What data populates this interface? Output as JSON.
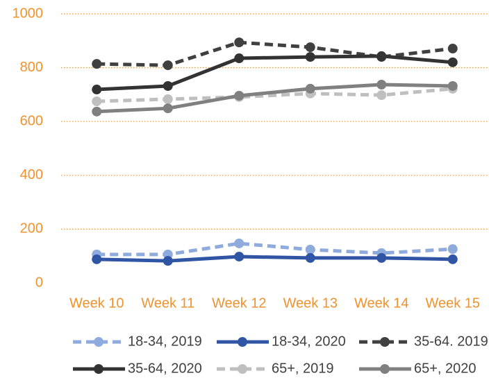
{
  "chart_data": {
    "type": "line",
    "categories": [
      "Week 10",
      "Week 11",
      "Week 12",
      "Week 13",
      "Week 14",
      "Week 15"
    ],
    "series": [
      {
        "name": "18-34, 2019",
        "color": "#8faadc",
        "dashed": true,
        "values": [
          106,
          106,
          147,
          124,
          111,
          126
        ]
      },
      {
        "name": "18-34, 2020",
        "color": "#2f55a4",
        "dashed": false,
        "values": [
          88,
          82,
          98,
          93,
          93,
          88
        ]
      },
      {
        "name": "35-64. 2019",
        "color": "#404040",
        "dashed": true,
        "values": [
          814,
          809,
          894,
          876,
          840,
          871
        ]
      },
      {
        "name": "35-64, 2020",
        "color": "#333333",
        "dashed": false,
        "values": [
          719,
          732,
          835,
          840,
          843,
          820
        ]
      },
      {
        "name": "65+, 2019",
        "color": "#bfbfbf",
        "dashed": true,
        "values": [
          675,
          683,
          691,
          704,
          698,
          722
        ]
      },
      {
        "name": "65+, 2020",
        "color": "#808080",
        "dashed": false,
        "values": [
          637,
          649,
          696,
          722,
          737,
          732
        ]
      }
    ],
    "ylim": [
      0,
      1000
    ],
    "yticks": [
      0,
      200,
      400,
      600,
      800,
      1000
    ],
    "grid": true,
    "legend": "bottom"
  }
}
